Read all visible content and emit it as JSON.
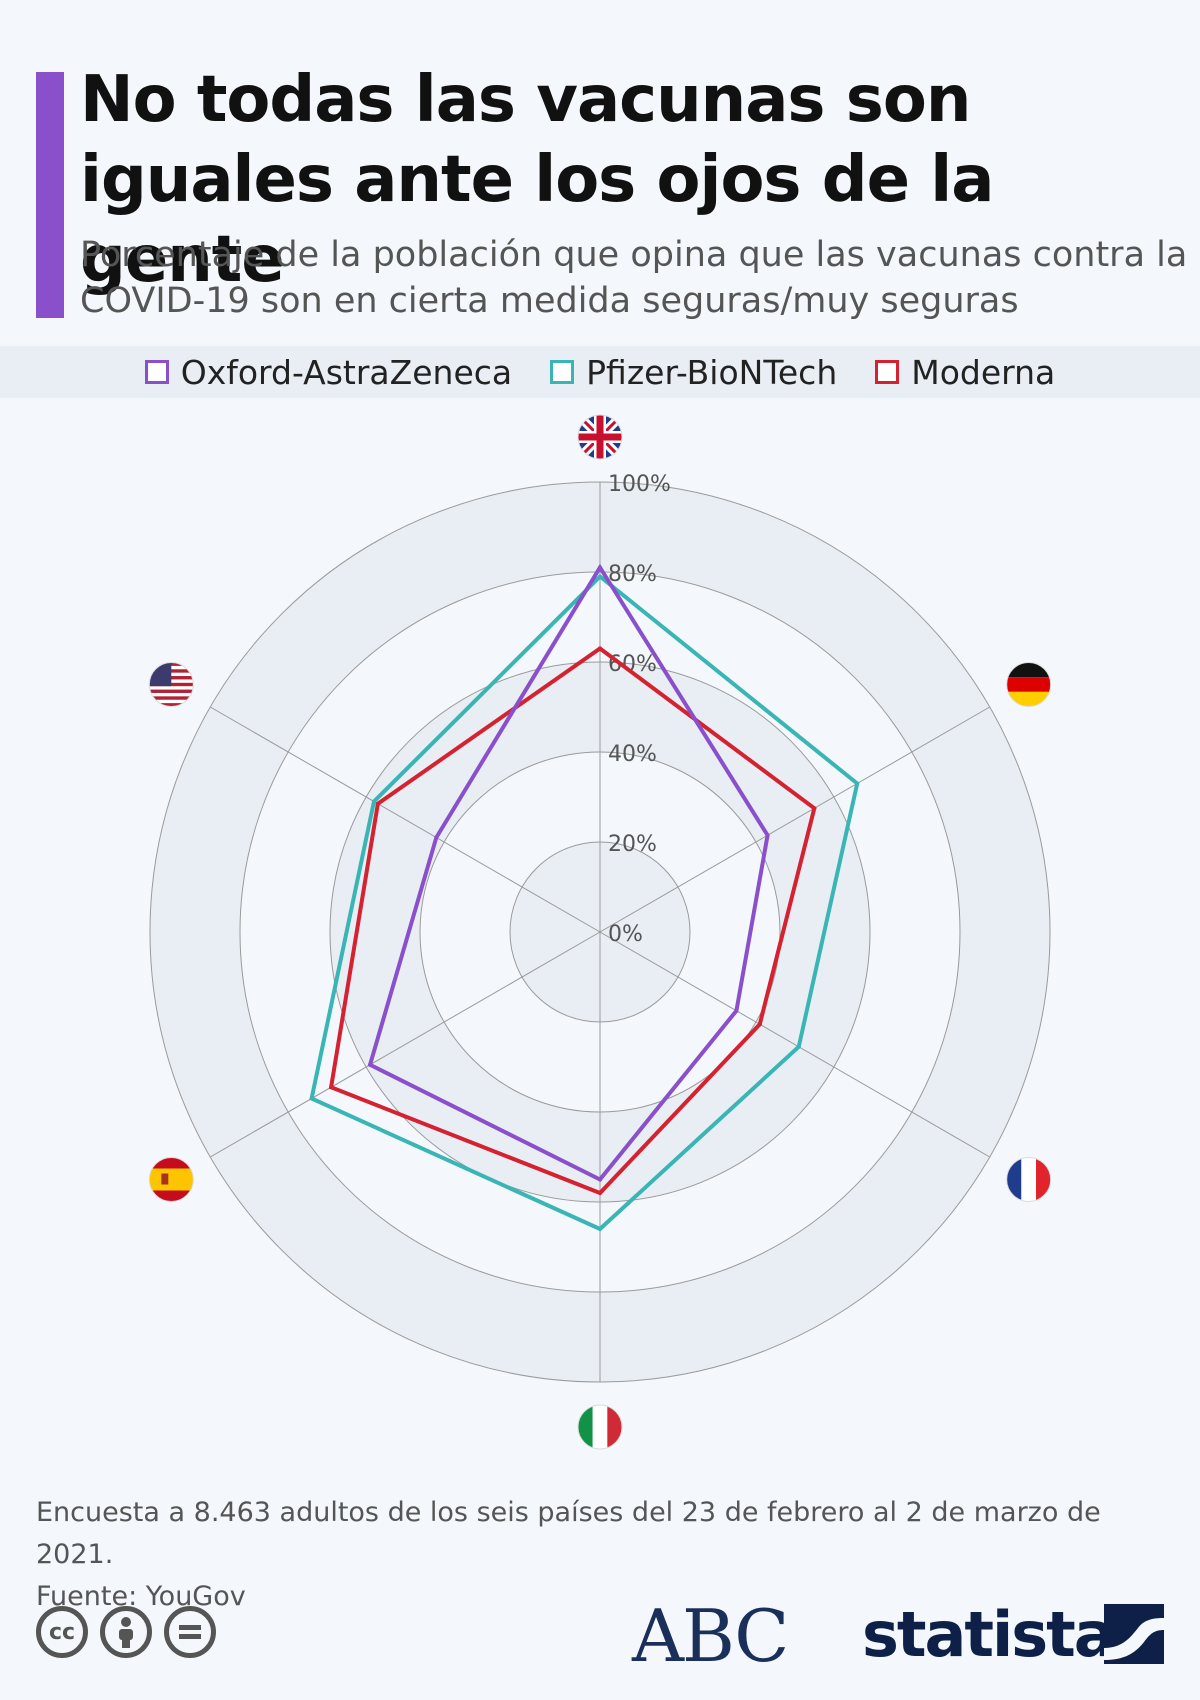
{
  "header": {
    "title": "No todas las vacunas son iguales ante los ojos de la gente",
    "subtitle": "Porcentaje de la población que opina que las vacunas contra la COVID-19 son en cierta medida seguras/muy seguras"
  },
  "footer": {
    "note": "Encuesta a 8.463 adultos de los seis países del 23 de febrero al 2 de marzo de 2021.",
    "source": "Fuente: YouGov"
  },
  "logos": {
    "abc": "ABC",
    "statista": "statista"
  },
  "colors": {
    "accent": "#8a4fcb",
    "oxford": "#8a4fcb",
    "pfizer": "#3ab5b5",
    "moderna": "#d42230"
  },
  "chart_data": {
    "type": "radar",
    "categories": [
      "Reino Unido",
      "Alemania",
      "Francia",
      "Italia",
      "España",
      "Estados Unidos"
    ],
    "category_icons": [
      "uk-flag-icon",
      "germany-flag-icon",
      "france-flag-icon",
      "italy-flag-icon",
      "spain-flag-icon",
      "usa-flag-icon"
    ],
    "ticks": [
      "0%",
      "20%",
      "40%",
      "60%",
      "80%",
      "100%"
    ],
    "tick_values": [
      0,
      20,
      40,
      60,
      80,
      100
    ],
    "rlim": [
      0,
      100
    ],
    "legend_position": "top",
    "series": [
      {
        "name": "Oxford-AstraZeneca",
        "color": "#8a4fcb",
        "values": [
          81,
          43,
          35,
          55,
          59,
          42
        ]
      },
      {
        "name": "Pfizer-BioNTech",
        "color": "#3ab5b5",
        "values": [
          79,
          66,
          51,
          66,
          74,
          58
        ]
      },
      {
        "name": "Moderna",
        "color": "#d42230",
        "values": [
          63,
          55,
          41,
          58,
          69,
          57
        ]
      }
    ]
  }
}
